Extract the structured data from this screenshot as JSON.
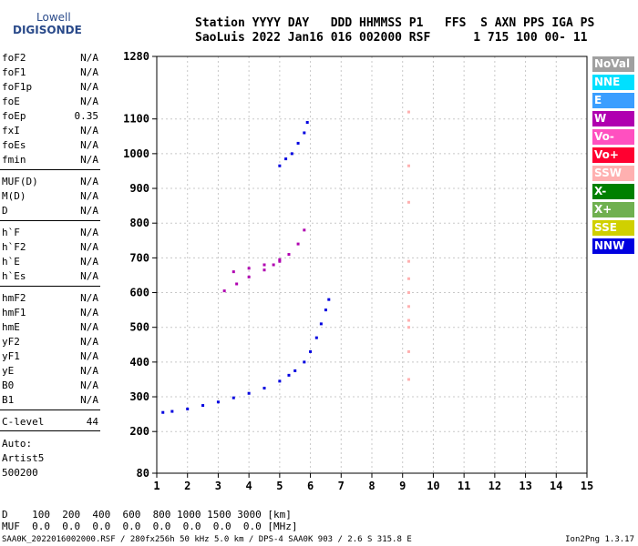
{
  "logo": {
    "line1": "Lowell",
    "line2": "DIGISONDE"
  },
  "header": {
    "line1": "Station YYYY DAY   DDD HHMMSS P1   FFS  S AXN PPS IGA PS",
    "line2": "SaoLuis 2022 Jan16 016 002000 RSF      1 715 100 00- 11"
  },
  "params": [
    {
      "name": "foF2",
      "value": "N/A"
    },
    {
      "name": "foF1",
      "value": "N/A"
    },
    {
      "name": "foF1p",
      "value": "N/A"
    },
    {
      "name": "foE",
      "value": "N/A"
    },
    {
      "name": "foEp",
      "value": "0.35"
    },
    {
      "name": "fxI",
      "value": "N/A"
    },
    {
      "name": "foEs",
      "value": "N/A"
    },
    {
      "name": "fmin",
      "value": "N/A"
    },
    {
      "name": "MUF(D)",
      "value": "N/A"
    },
    {
      "name": "M(D)",
      "value": "N/A"
    },
    {
      "name": "D",
      "value": "N/A"
    },
    {
      "name": "h`F",
      "value": "N/A"
    },
    {
      "name": "h`F2",
      "value": "N/A"
    },
    {
      "name": "h`E",
      "value": "N/A"
    },
    {
      "name": "h`Es",
      "value": "N/A"
    },
    {
      "name": "hmF2",
      "value": "N/A"
    },
    {
      "name": "hmF1",
      "value": "N/A"
    },
    {
      "name": "hmE",
      "value": "N/A"
    },
    {
      "name": "yF2",
      "value": "N/A"
    },
    {
      "name": "yF1",
      "value": "N/A"
    },
    {
      "name": "yE",
      "value": "N/A"
    },
    {
      "name": "B0",
      "value": "N/A"
    },
    {
      "name": "B1",
      "value": "N/A"
    },
    {
      "name": "C-level",
      "value": "44"
    }
  ],
  "auto": {
    "line1": "Auto:",
    "line2": "Artist5",
    "line3": "500200"
  },
  "bottom": {
    "d_row": "D    100  200  400  600  800 1000 1500 3000 [km]",
    "muf_row": "MUF  0.0  0.0  0.0  0.0  0.0  0.0  0.0  0.0 [MHz]"
  },
  "footer": {
    "left": "SAA0K_2022016002000.RSF / 280fx256h 50 kHz 5.0 km / DPS-4 SAA0K 903 / 2.6 S 315.8 E",
    "right": "Ion2Png 1.3.17"
  },
  "legend": [
    {
      "label": "NoVal",
      "color": "#a0a0a0"
    },
    {
      "label": "NNE",
      "color": "#00e0ff"
    },
    {
      "label": "E",
      "color": "#3a9eff"
    },
    {
      "label": "W",
      "color": "#b000b0"
    },
    {
      "label": "Vo-",
      "color": "#ff50c0"
    },
    {
      "label": "Vo+",
      "color": "#ff0030"
    },
    {
      "label": "SSW",
      "color": "#ffb0b0"
    },
    {
      "label": "X-",
      "color": "#008000"
    },
    {
      "label": "X+",
      "color": "#70b050"
    },
    {
      "label": "SSE",
      "color": "#d0d000"
    },
    {
      "label": "NNW",
      "color": "#0000e0"
    }
  ],
  "chart_data": {
    "type": "scatter",
    "xlabel": "",
    "ylabel": "",
    "xlim": [
      1,
      15
    ],
    "ylim": [
      80,
      1280
    ],
    "xticks": [
      1,
      2,
      3,
      4,
      5,
      6,
      7,
      8,
      9,
      10,
      11,
      12,
      13,
      14,
      15
    ],
    "yticks": [
      80,
      200,
      300,
      400,
      500,
      600,
      700,
      800,
      900,
      1000,
      1100,
      1280
    ],
    "series": [
      {
        "color": "#0000e0",
        "points": [
          [
            1.2,
            255
          ],
          [
            1.5,
            258
          ],
          [
            2.0,
            265
          ],
          [
            2.5,
            275
          ],
          [
            3.0,
            285
          ],
          [
            3.5,
            297
          ],
          [
            4.0,
            310
          ],
          [
            4.5,
            325
          ],
          [
            5.0,
            345
          ],
          [
            5.3,
            362
          ],
          [
            5.5,
            375
          ],
          [
            5.8,
            400
          ],
          [
            6.0,
            430
          ],
          [
            6.2,
            470
          ],
          [
            6.35,
            510
          ],
          [
            6.5,
            550
          ],
          [
            6.6,
            580
          ]
        ]
      },
      {
        "color": "#b000b0",
        "points": [
          [
            3.2,
            605
          ],
          [
            3.6,
            625
          ],
          [
            4.0,
            645
          ],
          [
            4.5,
            665
          ],
          [
            4.8,
            680
          ],
          [
            5.0,
            690
          ],
          [
            5.3,
            710
          ],
          [
            5.6,
            740
          ],
          [
            5.8,
            780
          ],
          [
            3.5,
            660
          ],
          [
            4.0,
            670
          ],
          [
            4.5,
            680
          ],
          [
            5.0,
            695
          ]
        ]
      },
      {
        "color": "#0000e0",
        "points": [
          [
            5.0,
            965
          ],
          [
            5.2,
            985
          ],
          [
            5.4,
            1000
          ],
          [
            5.6,
            1030
          ],
          [
            5.8,
            1060
          ],
          [
            5.9,
            1090
          ]
        ]
      },
      {
        "color": "#ffb0b0",
        "points": [
          [
            9.2,
            350
          ],
          [
            9.2,
            430
          ],
          [
            9.2,
            500
          ],
          [
            9.2,
            520
          ],
          [
            9.2,
            560
          ],
          [
            9.2,
            600
          ],
          [
            9.2,
            640
          ],
          [
            9.2,
            690
          ],
          [
            9.2,
            860
          ],
          [
            9.2,
            965
          ],
          [
            9.2,
            1120
          ]
        ]
      }
    ]
  }
}
